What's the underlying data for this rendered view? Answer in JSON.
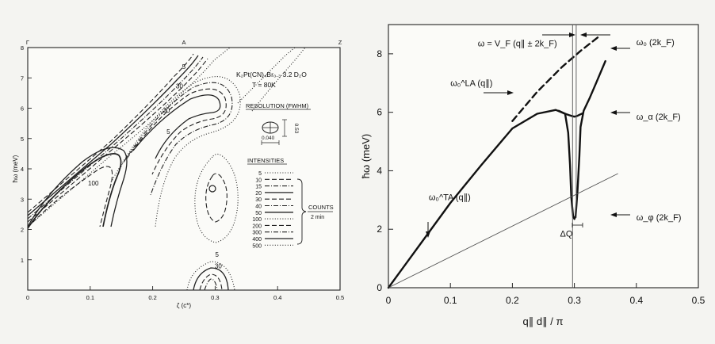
{
  "chart_data": [
    {
      "type": "contour",
      "title": "",
      "xlabel": "ζ (c*)",
      "ylabel": "ħω (meV)",
      "xlim": [
        0,
        0.5
      ],
      "ylim": [
        0,
        8
      ],
      "x_ticks": [
        0,
        0.1,
        0.2,
        0.3,
        0.4,
        0.5
      ],
      "x_tick_labels": [
        "0",
        "0.1",
        "0.2",
        "0.3",
        "0.4",
        "0.5"
      ],
      "y_ticks": [
        1,
        2,
        3,
        4,
        5,
        6,
        7,
        8
      ],
      "y_tick_labels": [
        "1",
        "2",
        "3",
        "4",
        "5",
        "6",
        "7",
        "8"
      ],
      "top_labels": [
        {
          "x": 0,
          "text": "Γ"
        },
        {
          "x": 0.25,
          "text": "A"
        },
        {
          "x": 0.5,
          "text": "Z"
        }
      ],
      "sample_label": "K₂Pt(CN)₄Br₀.₃ 3.2 D₂O",
      "temperature_label": "T = 80K",
      "resolution_title": "RESOLUTION (FWHM)",
      "resolution_dx": "0.040",
      "resolution_dy": "0.53",
      "intensities_title": "INTENSITIES",
      "intensity_levels": [
        "5",
        "10",
        "15",
        "20",
        "30",
        "40",
        "50",
        "100",
        "200",
        "300",
        "400",
        "500"
      ],
      "counts_label": "COUNTS",
      "counts_unit": "2 min",
      "contour_labels": [
        {
          "x": 0.25,
          "y": 7.3,
          "text": "5"
        },
        {
          "x": 0.243,
          "y": 6.65,
          "text": "30"
        },
        {
          "x": 0.222,
          "y": 5.85,
          "text": "30"
        },
        {
          "x": 0.225,
          "y": 5.15,
          "text": "5"
        },
        {
          "x": 0.105,
          "y": 3.45,
          "text": "100"
        },
        {
          "x": 0.303,
          "y": 1.1,
          "text": "5"
        },
        {
          "x": 0.305,
          "y": 0.72,
          "text": "30"
        }
      ]
    },
    {
      "type": "line",
      "title": "",
      "xlabel": "q∥ d∥ / π",
      "ylabel": "ħω (meV)",
      "xlim": [
        0,
        0.5
      ],
      "ylim": [
        0,
        9
      ],
      "x_ticks": [
        0,
        0.1,
        0.2,
        0.3,
        0.4,
        0.5
      ],
      "x_tick_labels": [
        "0",
        "0.1",
        "0.2",
        "0.3",
        "0.4",
        "0.5"
      ],
      "y_ticks": [
        0,
        2,
        4,
        6,
        8
      ],
      "y_tick_labels": [
        "0",
        "2",
        "4",
        "6",
        "8"
      ],
      "series": [
        {
          "name": "",
          "style": "solid-thick",
          "x": [
            0,
            0.05,
            0.1,
            0.15,
            0.2,
            0.24,
            0.27,
            0.285,
            0.29,
            0.293,
            0.295,
            0.298,
            0.3,
            0.302,
            0.305,
            0.308,
            0.31,
            0.315,
            0.325,
            0.335,
            0.35
          ],
          "y": [
            0,
            1.45,
            2.9,
            4.2,
            5.45,
            5.95,
            6.08,
            5.95,
            5.3,
            4.2,
            3.1,
            2.45,
            2.35,
            2.45,
            3.3,
            4.5,
            5.5,
            6.05,
            6.5,
            7.0,
            7.75
          ]
        },
        {
          "name": "",
          "style": "solid-thick",
          "x": [
            0.275,
            0.285,
            0.292,
            0.298,
            0.3,
            0.302,
            0.305,
            0.31,
            0.313
          ],
          "y": [
            6.05,
            5.95,
            5.9,
            5.86,
            5.85,
            5.86,
            5.88,
            5.93,
            5.96
          ]
        },
        {
          "name": "",
          "style": "dashed",
          "x": [
            0.2,
            0.24,
            0.28,
            0.31,
            0.34
          ],
          "y": [
            5.7,
            6.7,
            7.55,
            8.1,
            8.6
          ]
        },
        {
          "name": "",
          "style": "solid-thin",
          "x": [
            0,
            0.37
          ],
          "y": [
            0,
            3.9
          ]
        },
        {
          "name": "",
          "style": "solid-thin",
          "x": [
            0.297,
            0.297
          ],
          "y": [
            0,
            9
          ]
        },
        {
          "name": "",
          "style": "solid-thin",
          "x": [
            0.303,
            0.303
          ],
          "y": [
            2.4,
            9
          ]
        }
      ],
      "annotations": [
        {
          "id": "omega-vf",
          "x": 0.21,
          "y": 8.25,
          "text": "ω = V_F (q∥ ± 2k_F)"
        },
        {
          "id": "omega-la",
          "x": 0.1,
          "y": 6.9,
          "text": "ω₀^LA (q∥)"
        },
        {
          "id": "omega-ta",
          "x": 0.065,
          "y": 3.0,
          "text": "ω₀^TA (q∥)"
        },
        {
          "id": "omega-0",
          "x": 0.4,
          "y": 8.3,
          "text": "ω₀ (2k_F)"
        },
        {
          "id": "omega-alpha",
          "x": 0.4,
          "y": 5.75,
          "text": "ω_α (2k_F)"
        },
        {
          "id": "omega-phi",
          "x": 0.4,
          "y": 2.3,
          "text": "ω_φ (2k_F)"
        },
        {
          "id": "delta-q",
          "x": 0.287,
          "y": 1.75,
          "text": "ΔQ"
        }
      ]
    }
  ]
}
